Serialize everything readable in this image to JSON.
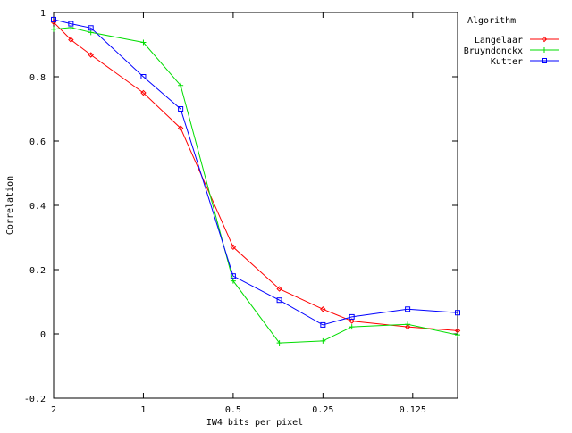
{
  "chart_data": {
    "type": "line",
    "xlabel": "IW4 bits per pixel",
    "ylabel": "Correlation",
    "x_scale": "log2",
    "xlim": [
      2,
      0.0884
    ],
    "ylim": [
      -0.2,
      1
    ],
    "x_ticks": [
      {
        "value": 2,
        "label": "2"
      },
      {
        "value": 1,
        "label": "1"
      },
      {
        "value": 0.5,
        "label": "0.5"
      },
      {
        "value": 0.25,
        "label": "0.25"
      },
      {
        "value": 0.125,
        "label": "0.125"
      }
    ],
    "y_ticks": [
      {
        "value": 1,
        "label": "1"
      },
      {
        "value": 0.8,
        "label": "0.8"
      },
      {
        "value": 0.6,
        "label": "0.6"
      },
      {
        "value": 0.4,
        "label": "0.4"
      },
      {
        "value": 0.2,
        "label": "0.2"
      },
      {
        "value": 0,
        "label": "0"
      },
      {
        "value": -0.2,
        "label": "-0.2"
      }
    ],
    "grid": false,
    "legend": {
      "title": "Algorithm",
      "placement": "outside-top-right"
    },
    "x": [
      2,
      1.75,
      1.5,
      1,
      0.75,
      0.5,
      0.35,
      0.25,
      0.2,
      0.13,
      0.0884
    ],
    "series": [
      {
        "name": "Langelaar",
        "color": "#ff0000",
        "marker": "diamond",
        "values": [
          0.97,
          0.915,
          0.868,
          0.75,
          0.64,
          0.27,
          0.14,
          0.077,
          0.04,
          0.022,
          0.01
        ]
      },
      {
        "name": "Bruyndonckx",
        "color": "#00dd00",
        "marker": "plus",
        "values": [
          0.948,
          0.953,
          0.938,
          0.907,
          0.773,
          0.165,
          -0.028,
          -0.022,
          0.022,
          0.03,
          -0.003
        ]
      },
      {
        "name": "Kutter",
        "color": "#0000ff",
        "marker": "square",
        "values": [
          0.978,
          0.965,
          0.952,
          0.8,
          0.7,
          0.18,
          0.105,
          0.028,
          0.053,
          0.077,
          0.066
        ]
      }
    ]
  }
}
